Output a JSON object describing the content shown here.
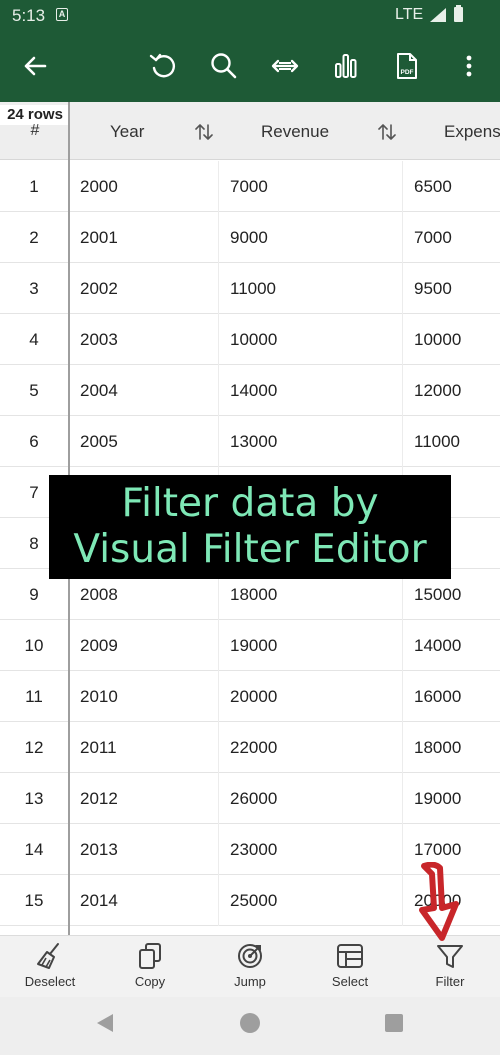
{
  "status_bar": {
    "time": "5:13",
    "network": "LTE"
  },
  "toolbar": {
    "icons": [
      "back-arrow-icon",
      "undo-icon",
      "search-icon",
      "resize-columns-icon",
      "chart-icon",
      "pdf-icon",
      "more-vert-icon"
    ],
    "pdf_label": "PDF"
  },
  "table": {
    "row_count_label": "24 rows",
    "index_header": "#",
    "columns": [
      "Year",
      "Revenue",
      "Expens"
    ],
    "rows": [
      {
        "num": "1",
        "year": "2000",
        "revenue": "7000",
        "expense": "6500"
      },
      {
        "num": "2",
        "year": "2001",
        "revenue": "9000",
        "expense": "7000"
      },
      {
        "num": "3",
        "year": "2002",
        "revenue": "11000",
        "expense": "9500"
      },
      {
        "num": "4",
        "year": "2003",
        "revenue": "10000",
        "expense": "10000"
      },
      {
        "num": "5",
        "year": "2004",
        "revenue": "14000",
        "expense": "12000"
      },
      {
        "num": "6",
        "year": "2005",
        "revenue": "13000",
        "expense": "11000"
      },
      {
        "num": "7",
        "year": "",
        "revenue": "",
        "expense": ""
      },
      {
        "num": "8",
        "year": "",
        "revenue": "",
        "expense": ""
      },
      {
        "num": "9",
        "year": "2008",
        "revenue": "18000",
        "expense": "15000"
      },
      {
        "num": "10",
        "year": "2009",
        "revenue": "19000",
        "expense": "14000"
      },
      {
        "num": "11",
        "year": "2010",
        "revenue": "20000",
        "expense": "16000"
      },
      {
        "num": "12",
        "year": "2011",
        "revenue": "22000",
        "expense": "18000"
      },
      {
        "num": "13",
        "year": "2012",
        "revenue": "26000",
        "expense": "19000"
      },
      {
        "num": "14",
        "year": "2013",
        "revenue": "23000",
        "expense": "17000"
      },
      {
        "num": "15",
        "year": "2014",
        "revenue": "25000",
        "expense": "20000"
      }
    ]
  },
  "overlay": {
    "line1": "Filter data by",
    "line2": "Visual Filter Editor"
  },
  "bottom_bar": {
    "items": [
      {
        "label": "Deselect",
        "icon": "broom-icon"
      },
      {
        "label": "Copy",
        "icon": "copy-icon"
      },
      {
        "label": "Jump",
        "icon": "target-icon"
      },
      {
        "label": "Select",
        "icon": "select-grid-icon"
      },
      {
        "label": "Filter",
        "icon": "filter-icon"
      }
    ]
  },
  "colors": {
    "app_bar": "#1e5a36",
    "overlay_text": "#7ee8b6",
    "highlight_arrow": "#c8262a"
  }
}
